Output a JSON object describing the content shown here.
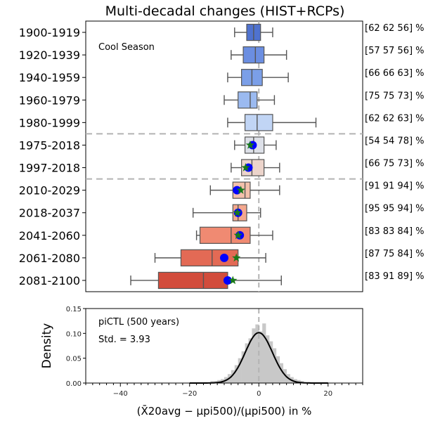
{
  "title": "Multi-decadal changes (HIST+RCPs)",
  "colors": {
    "box_edge": "#555555",
    "whisker": "#555555",
    "mean_marker": "#0000ff",
    "star_marker": "#1a7a1a",
    "zero_line": "#b3b3b3",
    "hist_fill": "#c8c8c8",
    "kde_line": "#000000"
  },
  "chart_data": [
    {
      "type": "box",
      "annotation": "Cool Season",
      "xlim": [
        -50,
        30
      ],
      "grid": false,
      "separators_after": [
        "1980-1999",
        "1997-2018"
      ],
      "rows": [
        {
          "label": "1900-1919",
          "whisker_lo": -7,
          "q1": -3.5,
          "median": -1.5,
          "q3": 0.5,
          "whisker_hi": 4,
          "color": "#4f72cf",
          "right": "[62 62 56] %"
        },
        {
          "label": "1920-1939",
          "whisker_lo": -8,
          "q1": -4.5,
          "median": -1,
          "q3": 1.5,
          "whisker_hi": 8,
          "color": "#6b8ee1",
          "right": "[57 57 56] %"
        },
        {
          "label": "1940-1959",
          "whisker_lo": -9,
          "q1": -5,
          "median": -2,
          "q3": 1,
          "whisker_hi": 8.5,
          "color": "#7b9fe8",
          "right": "[66 66 63] %"
        },
        {
          "label": "1960-1979",
          "whisker_lo": -10,
          "q1": -6,
          "median": -2.5,
          "q3": -0.5,
          "whisker_hi": 4.5,
          "color": "#9bbaf0",
          "right": "[75 75 73] %"
        },
        {
          "label": "1980-1999",
          "whisker_lo": -9,
          "q1": -4,
          "median": -0.5,
          "q3": 4,
          "whisker_hi": 16.5,
          "color": "#c1d5f5",
          "right": "[62 62 63] %"
        },
        {
          "label": "1975-2018",
          "whisker_lo": -7,
          "q1": -4,
          "median": -1.5,
          "q3": 1.5,
          "whisker_hi": 5,
          "color": "#dde0e8",
          "mean": -1.8,
          "star": -2.5,
          "right": "[54 54 78] %"
        },
        {
          "label": "1997-2018",
          "whisker_lo": -8,
          "q1": -5,
          "median": -2,
          "q3": 1.5,
          "whisker_hi": 6,
          "color": "#ecd4cb",
          "mean": -3,
          "star": -3.8,
          "right": "[66 75 73] %"
        },
        {
          "label": "2010-2029",
          "whisker_lo": -14,
          "q1": -7.5,
          "median": -4,
          "q3": -2.5,
          "whisker_hi": 6,
          "color": "#f4c0ab",
          "mean": -6.3,
          "star": -5.2,
          "right": "[91 91 94] %"
        },
        {
          "label": "2018-2037",
          "whisker_lo": -19,
          "q1": -7.5,
          "median": -6,
          "q3": -3.5,
          "whisker_hi": 0.5,
          "color": "#f3a88e",
          "mean": -6,
          "star": -6.2,
          "right": "[95 95 94] %"
        },
        {
          "label": "2041-2060",
          "whisker_lo": -18,
          "q1": -17,
          "median": -8,
          "q3": -2.5,
          "whisker_hi": 4,
          "color": "#f08a72",
          "mean": -5.5,
          "star": -6,
          "right": "[83 83 84] %"
        },
        {
          "label": "2061-2080",
          "whisker_lo": -30,
          "q1": -22.5,
          "median": -13.5,
          "q3": -6,
          "whisker_hi": 2,
          "color": "#e36a55",
          "mean": -10,
          "star": -6.5,
          "right": "[87 75 84] %"
        },
        {
          "label": "2081-2100",
          "whisker_lo": -37,
          "q1": -29,
          "median": -16,
          "q3": -9,
          "whisker_hi": 6.5,
          "color": "#d24c3c",
          "mean": -9,
          "star": -7.5,
          "right": "[83 91 89] %"
        }
      ]
    },
    {
      "type": "histogram+kde",
      "annotation_lines": [
        "piCTL (500 years)",
        "Std. = 3.93"
      ],
      "ylabel": "Density",
      "xlabel": "(X̄20avg − μpi500)/(μpi500) in %",
      "xlim": [
        -50,
        30
      ],
      "ylim": [
        0,
        0.15
      ],
      "xticks": [
        -40,
        -20,
        0,
        20
      ],
      "yticks": [
        "0.00",
        "0.05",
        "0.10",
        "0.15"
      ],
      "hist_bin_width": 1,
      "hist": [
        [
          -16,
          0.002
        ],
        [
          -14,
          0.004
        ],
        [
          -13,
          0.004
        ],
        [
          -12,
          0.006
        ],
        [
          -11,
          0.008
        ],
        [
          -10,
          0.012
        ],
        [
          -9,
          0.018
        ],
        [
          -8,
          0.026
        ],
        [
          -7,
          0.036
        ],
        [
          -6,
          0.05
        ],
        [
          -5,
          0.064
        ],
        [
          -4,
          0.08
        ],
        [
          -3,
          0.09
        ],
        [
          -2,
          0.11
        ],
        [
          -1,
          0.118
        ],
        [
          0,
          0.104
        ],
        [
          1,
          0.12
        ],
        [
          2,
          0.096
        ],
        [
          3,
          0.084
        ],
        [
          4,
          0.07
        ],
        [
          5,
          0.054
        ],
        [
          6,
          0.04
        ],
        [
          7,
          0.028
        ],
        [
          8,
          0.018
        ],
        [
          9,
          0.012
        ],
        [
          10,
          0.008
        ],
        [
          11,
          0.006
        ],
        [
          12,
          0.004
        ],
        [
          14,
          0.002
        ]
      ],
      "kde_std": 3.93,
      "kde_mean": 0
    }
  ]
}
